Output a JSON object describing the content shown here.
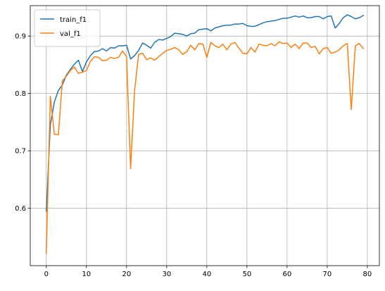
{
  "chart_data": {
    "type": "line",
    "title": "",
    "xlabel": "",
    "ylabel": "",
    "xlim": [
      -4,
      83
    ],
    "ylim": [
      0.5,
      0.953
    ],
    "xticks": [
      0,
      10,
      20,
      30,
      40,
      50,
      60,
      70,
      80
    ],
    "yticks": [
      0.6,
      0.7,
      0.8,
      0.9
    ],
    "ytick_labels": [
      "0.6",
      "0.7",
      "0.8",
      "0.9"
    ],
    "grid": true,
    "legend_position": "upper-left",
    "series": [
      {
        "name": "train_f1",
        "color": "#1f77b4",
        "values": [
          0.595,
          0.745,
          0.785,
          0.805,
          0.815,
          0.832,
          0.842,
          0.851,
          0.858,
          0.838,
          0.855,
          0.866,
          0.873,
          0.874,
          0.878,
          0.874,
          0.88,
          0.879,
          0.883,
          0.883,
          0.884,
          0.86,
          0.866,
          0.875,
          0.888,
          0.884,
          0.879,
          0.889,
          0.894,
          0.893,
          0.896,
          0.899,
          0.905,
          0.904,
          0.903,
          0.9,
          0.904,
          0.905,
          0.911,
          0.912,
          0.913,
          0.909,
          0.914,
          0.916,
          0.918,
          0.919,
          0.919,
          0.921,
          0.921,
          0.922,
          0.918,
          0.917,
          0.917,
          0.92,
          0.923,
          0.925,
          0.926,
          0.927,
          0.929,
          0.931,
          0.931,
          0.933,
          0.935,
          0.933,
          0.935,
          0.932,
          0.932,
          0.934,
          0.934,
          0.93,
          0.934,
          0.935,
          0.914,
          0.922,
          0.932,
          0.937,
          0.934,
          0.93,
          0.932,
          0.936
        ]
      },
      {
        "name": "val_f1",
        "color": "#ff7f0e",
        "values": [
          0.521,
          0.795,
          0.729,
          0.728,
          0.822,
          0.83,
          0.84,
          0.846,
          0.835,
          0.837,
          0.84,
          0.856,
          0.864,
          0.863,
          0.857,
          0.858,
          0.863,
          0.861,
          0.863,
          0.874,
          0.864,
          0.669,
          0.805,
          0.868,
          0.87,
          0.859,
          0.862,
          0.858,
          0.864,
          0.87,
          0.875,
          0.877,
          0.88,
          0.876,
          0.868,
          0.873,
          0.884,
          0.876,
          0.887,
          0.886,
          0.863,
          0.889,
          0.883,
          0.88,
          0.886,
          0.876,
          0.886,
          0.889,
          0.879,
          0.87,
          0.869,
          0.88,
          0.872,
          0.886,
          0.884,
          0.883,
          0.887,
          0.883,
          0.89,
          0.887,
          0.888,
          0.88,
          0.886,
          0.878,
          0.888,
          0.888,
          0.88,
          0.882,
          0.869,
          0.878,
          0.88,
          0.87,
          0.872,
          0.876,
          0.883,
          0.887,
          0.772,
          0.883,
          0.887,
          0.878
        ]
      }
    ]
  }
}
